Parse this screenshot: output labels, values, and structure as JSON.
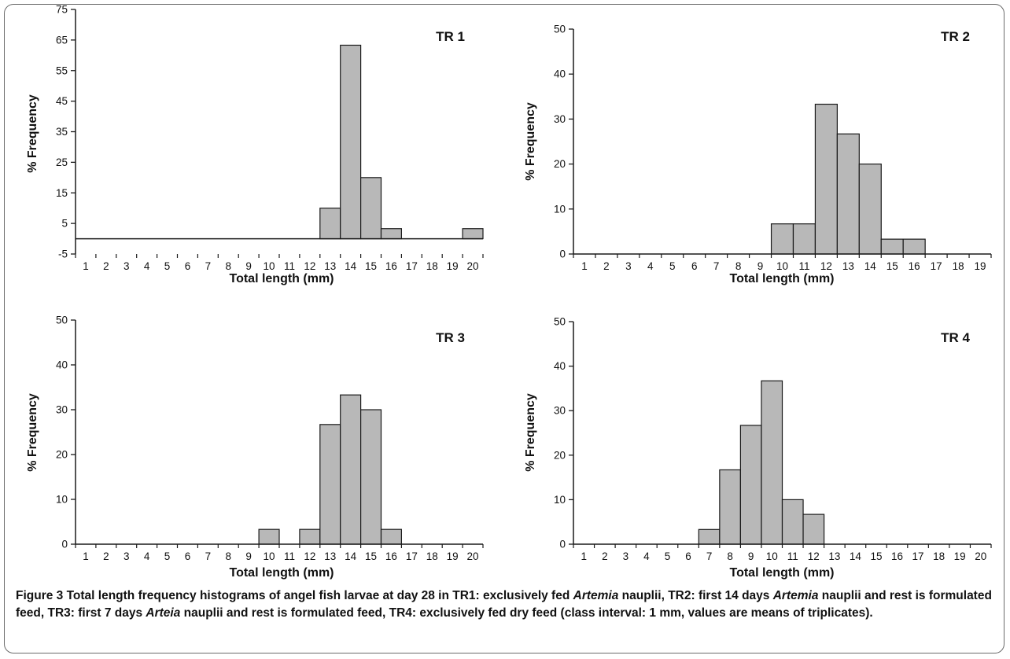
{
  "chart_data": [
    {
      "type": "bar",
      "title": "TR 1",
      "xlabel": "Total length (mm)",
      "ylabel": "% Frequency",
      "categories": [
        "1",
        "2",
        "3",
        "4",
        "5",
        "6",
        "7",
        "8",
        "9",
        "10",
        "11",
        "12",
        "13",
        "14",
        "15",
        "16",
        "17",
        "18",
        "19",
        "20"
      ],
      "values": [
        0,
        0,
        0,
        0,
        0,
        0,
        0,
        0,
        0,
        0,
        0,
        0,
        10,
        63.3,
        20,
        3.3,
        0,
        0,
        0,
        3.3
      ],
      "ylim": [
        -5,
        75
      ],
      "yticks": [
        -5,
        5,
        15,
        25,
        35,
        45,
        55,
        65,
        75
      ],
      "grid": false
    },
    {
      "type": "bar",
      "title": "TR 2",
      "xlabel": "Total length (mm)",
      "ylabel": "% Frequency",
      "categories": [
        "1",
        "2",
        "3",
        "4",
        "5",
        "6",
        "7",
        "8",
        "9",
        "10",
        "11",
        "12",
        "13",
        "14",
        "15",
        "16",
        "17",
        "18",
        "19"
      ],
      "values": [
        0,
        0,
        0,
        0,
        0,
        0,
        0,
        0,
        0,
        6.7,
        6.7,
        33.3,
        26.7,
        20,
        3.3,
        3.3,
        0,
        0,
        0
      ],
      "ylim": [
        0,
        50
      ],
      "yticks": [
        0,
        10,
        20,
        30,
        40,
        50
      ],
      "grid": false
    },
    {
      "type": "bar",
      "title": "TR 3",
      "xlabel": "Total length (mm)",
      "ylabel": "% Frequency",
      "categories": [
        "1",
        "2",
        "3",
        "4",
        "5",
        "6",
        "7",
        "8",
        "9",
        "10",
        "11",
        "12",
        "13",
        "14",
        "15",
        "16",
        "17",
        "18",
        "19",
        "20"
      ],
      "values": [
        0,
        0,
        0,
        0,
        0,
        0,
        0,
        0,
        0,
        3.3,
        0,
        3.3,
        26.7,
        33.3,
        30,
        3.3,
        0,
        0,
        0,
        0
      ],
      "ylim": [
        0,
        50
      ],
      "yticks": [
        0,
        10,
        20,
        30,
        40,
        50
      ],
      "grid": false
    },
    {
      "type": "bar",
      "title": "TR 4",
      "xlabel": "Total length (mm)",
      "ylabel": "% Frequency",
      "categories": [
        "1",
        "2",
        "3",
        "4",
        "5",
        "6",
        "7",
        "8",
        "9",
        "10",
        "11",
        "12",
        "13",
        "14",
        "15",
        "16",
        "17",
        "18",
        "19",
        "20"
      ],
      "values": [
        0,
        0,
        0,
        0,
        0,
        0,
        3.3,
        16.7,
        26.7,
        36.7,
        10,
        6.7,
        0,
        0,
        0,
        0,
        0,
        0,
        0,
        0
      ],
      "ylim": [
        0,
        50
      ],
      "yticks": [
        0,
        10,
        20,
        30,
        40,
        50
      ],
      "grid": false
    }
  ],
  "colors": {
    "bar_fill": "#b8b8b8",
    "bar_stroke": "#1a1a1a",
    "axis": "#1a1a1a",
    "frame": "#6b6b6b"
  },
  "caption": {
    "label": "Figure 3",
    "seg1": " Total length frequency histograms of angel fish larvae at day 28 in TR1: exclusively fed ",
    "it1": "Artemia",
    "seg2": " nauplii, TR2: first 14 days ",
    "it2": "Artemia",
    "seg3": " nauplii and rest is formulated feed, TR3: first 7 days ",
    "it3": "Arteia",
    "seg4": " nauplii and rest is formulated feed, TR4: exclusively fed dry feed (class interval: 1 mm, values are means of triplicates)."
  }
}
